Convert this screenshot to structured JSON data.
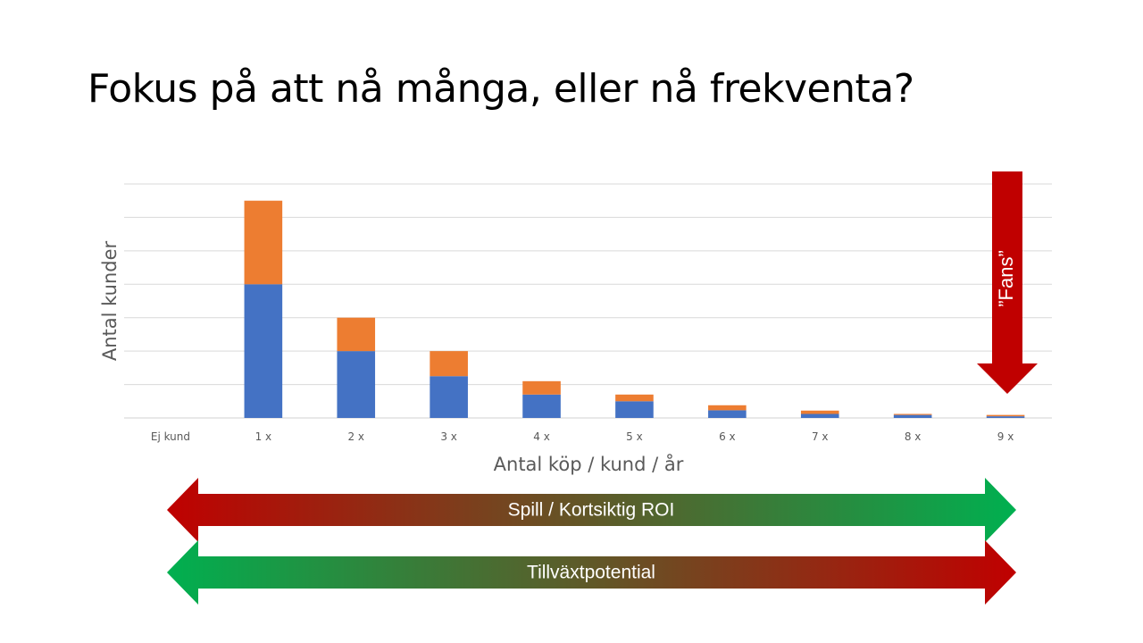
{
  "slide": {
    "title": "Fokus på att nå många, eller nå frekventa?"
  },
  "chart_data": {
    "type": "bar",
    "stacked": true,
    "categories": [
      "Ej kund",
      "1 x",
      "2 x",
      "3 x",
      "4 x",
      "5 x",
      "6 x",
      "7 x",
      "8 x",
      "9 x"
    ],
    "series": [
      {
        "color": "#4472c4",
        "values": [
          0,
          40,
          20,
          12.5,
          7,
          5,
          2.3,
          1.2,
          0.9,
          0.5
        ]
      },
      {
        "color": "#ed7d31",
        "values": [
          0,
          25,
          10,
          7.5,
          4,
          2,
          1.5,
          1,
          0.3,
          0.4
        ]
      }
    ],
    "xlabel": "Antal köp / kund / år",
    "ylabel": "Antal kunder",
    "ylim": [
      0,
      70
    ],
    "gridlines": 7,
    "grid": true,
    "y_tick_labels": false,
    "legend": false
  },
  "annotations": {
    "fans_label": "”Fans”",
    "fans_arrow_color": "#c00000",
    "arrow_top": {
      "label": "Spill / Kortsiktig ROI",
      "color_left": "#c00000",
      "color_right": "#00b050"
    },
    "arrow_bottom": {
      "label": "Tillväxtpotential",
      "color_left": "#00b050",
      "color_right": "#c00000"
    }
  }
}
